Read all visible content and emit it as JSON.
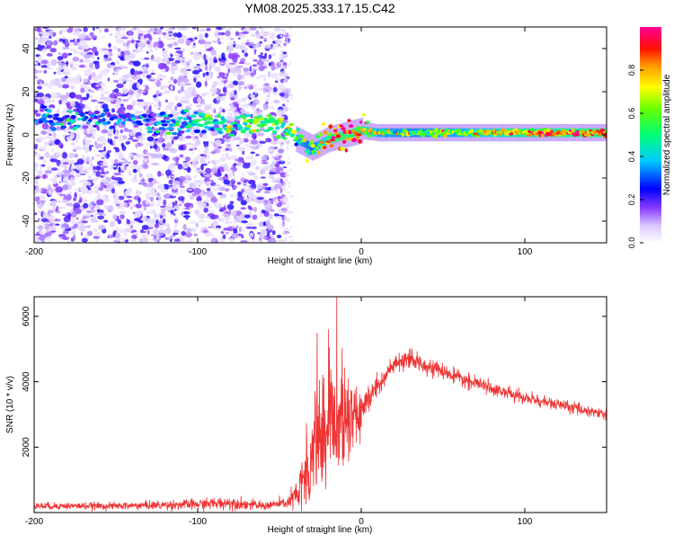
{
  "title": "YM08.2025.333.17.15.C42",
  "chart_data": [
    {
      "type": "heatmap",
      "xlabel": "Height of straight line (km)",
      "ylabel": "Frequency (Hz)",
      "xlim": [
        -200,
        150
      ],
      "ylim": [
        -50,
        50
      ],
      "xticks": [
        -200,
        -100,
        0,
        100
      ],
      "yticks": [
        -40,
        -20,
        0,
        20,
        40
      ],
      "grid": false,
      "colorbar": {
        "label": "Normalized spectral amplitude",
        "range": [
          0.0,
          1.0
        ],
        "ticks": [
          0.0,
          0.2,
          0.4,
          0.6,
          0.8
        ],
        "colormap": [
          "#e6dcff",
          "#b49bff",
          "#6a00ff",
          "#0000ff",
          "#00e5ff",
          "#00ff66",
          "#ffff00",
          "#ff8800",
          "#ff0000",
          "#ff0099"
        ]
      },
      "ridge": {
        "x": [
          -200,
          -180,
          -160,
          -140,
          -120,
          -100,
          -80,
          -60,
          -50,
          -40,
          -30,
          -20,
          -10,
          0,
          10,
          30,
          60,
          100,
          150
        ],
        "y": [
          8,
          7,
          8,
          7,
          6,
          6,
          4,
          6,
          5,
          -2,
          -6,
          -2,
          0,
          2,
          1,
          1,
          1,
          1,
          1
        ],
        "amplitude": [
          0.25,
          0.3,
          0.25,
          0.28,
          0.3,
          0.45,
          0.5,
          0.5,
          0.55,
          0.6,
          0.5,
          0.85,
          0.9,
          0.8,
          0.6,
          0.55,
          0.6,
          0.8,
          0.85
        ]
      },
      "scatter_extent": {
        "x": [
          -200,
          -45
        ],
        "y": [
          -50,
          50
        ]
      }
    },
    {
      "type": "line",
      "xlabel": "Height of straight line (km)",
      "ylabel": "SNR (10 * v/v)",
      "xlim": [
        -200,
        150
      ],
      "ylim": [
        0,
        6600
      ],
      "xticks": [
        -200,
        -100,
        0,
        100
      ],
      "yticks": [
        2000,
        4000,
        6000
      ],
      "color": "#ee3333",
      "grid": false,
      "envelope": {
        "x": [
          -200,
          -150,
          -100,
          -80,
          -60,
          -45,
          -38,
          -34,
          -30,
          -26,
          -22,
          -18,
          -14,
          -10,
          -6,
          -2,
          0,
          5,
          10,
          15,
          20,
          25,
          30,
          35,
          40,
          50,
          60,
          80,
          100,
          120,
          135,
          150
        ],
        "mean": [
          200,
          200,
          250,
          300,
          200,
          300,
          600,
          1200,
          2000,
          2400,
          2600,
          2800,
          2800,
          2600,
          2700,
          2900,
          3100,
          3500,
          3900,
          4200,
          4500,
          4600,
          4650,
          4600,
          4500,
          4300,
          4100,
          3800,
          3500,
          3300,
          3150,
          3000
        ],
        "noise": [
          100,
          100,
          150,
          180,
          120,
          150,
          600,
          1100,
          1500,
          1700,
          1800,
          1700,
          1600,
          1300,
          1100,
          800,
          500,
          400,
          350,
          300,
          250,
          250,
          250,
          250,
          220,
          200,
          200,
          180,
          180,
          160,
          160,
          160
        ]
      },
      "spikes": [
        {
          "x": -27,
          "y": 5500
        },
        {
          "x": -20,
          "y": 5600
        },
        {
          "x": -15,
          "y": 6600
        },
        {
          "x": -8,
          "y": 4100
        }
      ]
    }
  ]
}
